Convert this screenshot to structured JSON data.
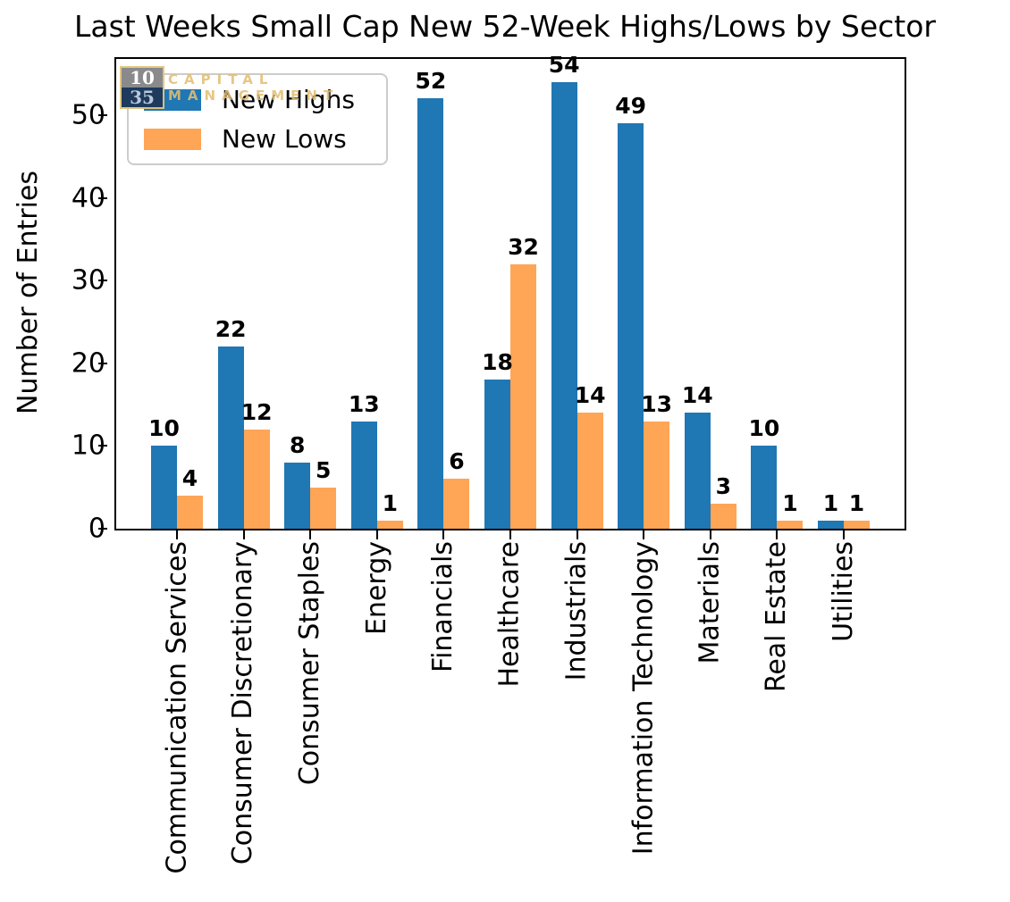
{
  "title": "Last Weeks Small Cap New 52-Week Highs/Lows by Sector",
  "watermark": {
    "number_top": "10",
    "number_bottom": "35",
    "text_line1": "CAPITAL",
    "text_line2": "MANAGEMENT"
  },
  "chart_data": {
    "type": "bar",
    "title": "Last Weeks Small Cap New 52-Week Highs/Lows by Sector",
    "xlabel": "",
    "ylabel": "Number of Entries",
    "categories": [
      "Communication Services",
      "Consumer Discretionary",
      "Consumer Staples",
      "Energy",
      "Financials",
      "Healthcare",
      "Industrials",
      "Information Technology",
      "Materials",
      "Real Estate",
      "Utilities"
    ],
    "series": [
      {
        "name": "New Highs",
        "color": "#1f77b4",
        "values": [
          10,
          22,
          8,
          13,
          52,
          18,
          54,
          49,
          14,
          10,
          1
        ]
      },
      {
        "name": "New Lows",
        "color": "#ffa556",
        "values": [
          4,
          12,
          5,
          1,
          6,
          32,
          14,
          13,
          3,
          1,
          1
        ]
      }
    ],
    "yticks": [
      0,
      10,
      20,
      30,
      40,
      50
    ],
    "ylim": [
      0,
      56.8
    ],
    "grid": false,
    "legend_position": "upper left",
    "bar_value_labels": true
  }
}
